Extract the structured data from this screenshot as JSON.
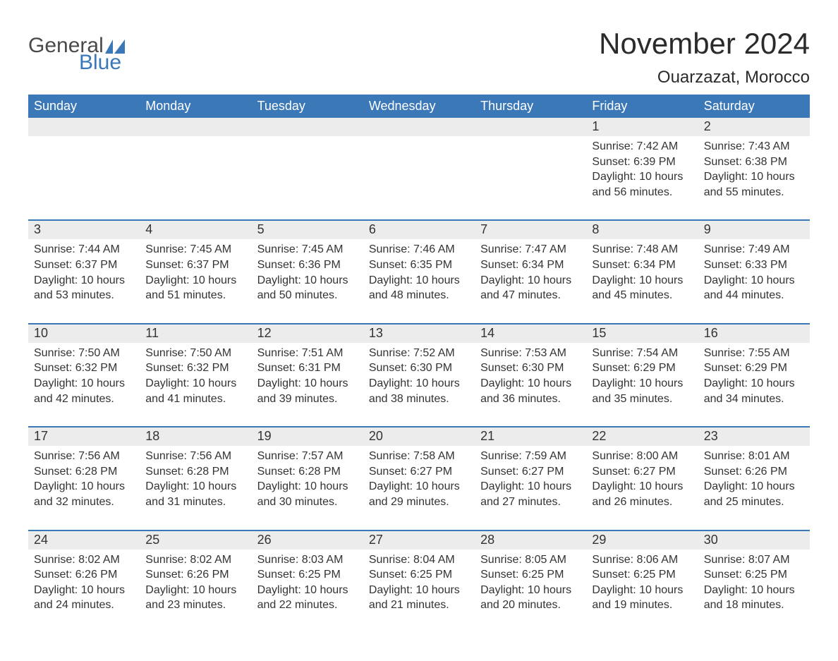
{
  "logo": {
    "text_general": "General",
    "text_blue": "Blue",
    "brand_color": "#3b78b8",
    "text_color": "#4a4a4a"
  },
  "title": "November 2024",
  "location": "Ouarzazat, Morocco",
  "colors": {
    "header_bg": "#3b78b8",
    "header_fg": "#ffffff",
    "daynum_bg": "#ececec",
    "row_divider": "#3b78b8",
    "body_text": "#333333",
    "page_bg": "#ffffff"
  },
  "typography": {
    "title_fontsize": 42,
    "location_fontsize": 24,
    "header_fontsize": 18,
    "daynum_fontsize": 18,
    "cell_fontsize": 16
  },
  "day_headers": [
    "Sunday",
    "Monday",
    "Tuesday",
    "Wednesday",
    "Thursday",
    "Friday",
    "Saturday"
  ],
  "labels": {
    "sunrise": "Sunrise: ",
    "sunset": "Sunset: ",
    "daylight": "Daylight: "
  },
  "weeks": [
    [
      null,
      null,
      null,
      null,
      null,
      {
        "n": "1",
        "sr": "7:42 AM",
        "ss": "6:39 PM",
        "dl": "10 hours and 56 minutes."
      },
      {
        "n": "2",
        "sr": "7:43 AM",
        "ss": "6:38 PM",
        "dl": "10 hours and 55 minutes."
      }
    ],
    [
      {
        "n": "3",
        "sr": "7:44 AM",
        "ss": "6:37 PM",
        "dl": "10 hours and 53 minutes."
      },
      {
        "n": "4",
        "sr": "7:45 AM",
        "ss": "6:37 PM",
        "dl": "10 hours and 51 minutes."
      },
      {
        "n": "5",
        "sr": "7:45 AM",
        "ss": "6:36 PM",
        "dl": "10 hours and 50 minutes."
      },
      {
        "n": "6",
        "sr": "7:46 AM",
        "ss": "6:35 PM",
        "dl": "10 hours and 48 minutes."
      },
      {
        "n": "7",
        "sr": "7:47 AM",
        "ss": "6:34 PM",
        "dl": "10 hours and 47 minutes."
      },
      {
        "n": "8",
        "sr": "7:48 AM",
        "ss": "6:34 PM",
        "dl": "10 hours and 45 minutes."
      },
      {
        "n": "9",
        "sr": "7:49 AM",
        "ss": "6:33 PM",
        "dl": "10 hours and 44 minutes."
      }
    ],
    [
      {
        "n": "10",
        "sr": "7:50 AM",
        "ss": "6:32 PM",
        "dl": "10 hours and 42 minutes."
      },
      {
        "n": "11",
        "sr": "7:50 AM",
        "ss": "6:32 PM",
        "dl": "10 hours and 41 minutes."
      },
      {
        "n": "12",
        "sr": "7:51 AM",
        "ss": "6:31 PM",
        "dl": "10 hours and 39 minutes."
      },
      {
        "n": "13",
        "sr": "7:52 AM",
        "ss": "6:30 PM",
        "dl": "10 hours and 38 minutes."
      },
      {
        "n": "14",
        "sr": "7:53 AM",
        "ss": "6:30 PM",
        "dl": "10 hours and 36 minutes."
      },
      {
        "n": "15",
        "sr": "7:54 AM",
        "ss": "6:29 PM",
        "dl": "10 hours and 35 minutes."
      },
      {
        "n": "16",
        "sr": "7:55 AM",
        "ss": "6:29 PM",
        "dl": "10 hours and 34 minutes."
      }
    ],
    [
      {
        "n": "17",
        "sr": "7:56 AM",
        "ss": "6:28 PM",
        "dl": "10 hours and 32 minutes."
      },
      {
        "n": "18",
        "sr": "7:56 AM",
        "ss": "6:28 PM",
        "dl": "10 hours and 31 minutes."
      },
      {
        "n": "19",
        "sr": "7:57 AM",
        "ss": "6:28 PM",
        "dl": "10 hours and 30 minutes."
      },
      {
        "n": "20",
        "sr": "7:58 AM",
        "ss": "6:27 PM",
        "dl": "10 hours and 29 minutes."
      },
      {
        "n": "21",
        "sr": "7:59 AM",
        "ss": "6:27 PM",
        "dl": "10 hours and 27 minutes."
      },
      {
        "n": "22",
        "sr": "8:00 AM",
        "ss": "6:27 PM",
        "dl": "10 hours and 26 minutes."
      },
      {
        "n": "23",
        "sr": "8:01 AM",
        "ss": "6:26 PM",
        "dl": "10 hours and 25 minutes."
      }
    ],
    [
      {
        "n": "24",
        "sr": "8:02 AM",
        "ss": "6:26 PM",
        "dl": "10 hours and 24 minutes."
      },
      {
        "n": "25",
        "sr": "8:02 AM",
        "ss": "6:26 PM",
        "dl": "10 hours and 23 minutes."
      },
      {
        "n": "26",
        "sr": "8:03 AM",
        "ss": "6:25 PM",
        "dl": "10 hours and 22 minutes."
      },
      {
        "n": "27",
        "sr": "8:04 AM",
        "ss": "6:25 PM",
        "dl": "10 hours and 21 minutes."
      },
      {
        "n": "28",
        "sr": "8:05 AM",
        "ss": "6:25 PM",
        "dl": "10 hours and 20 minutes."
      },
      {
        "n": "29",
        "sr": "8:06 AM",
        "ss": "6:25 PM",
        "dl": "10 hours and 19 minutes."
      },
      {
        "n": "30",
        "sr": "8:07 AM",
        "ss": "6:25 PM",
        "dl": "10 hours and 18 minutes."
      }
    ]
  ]
}
